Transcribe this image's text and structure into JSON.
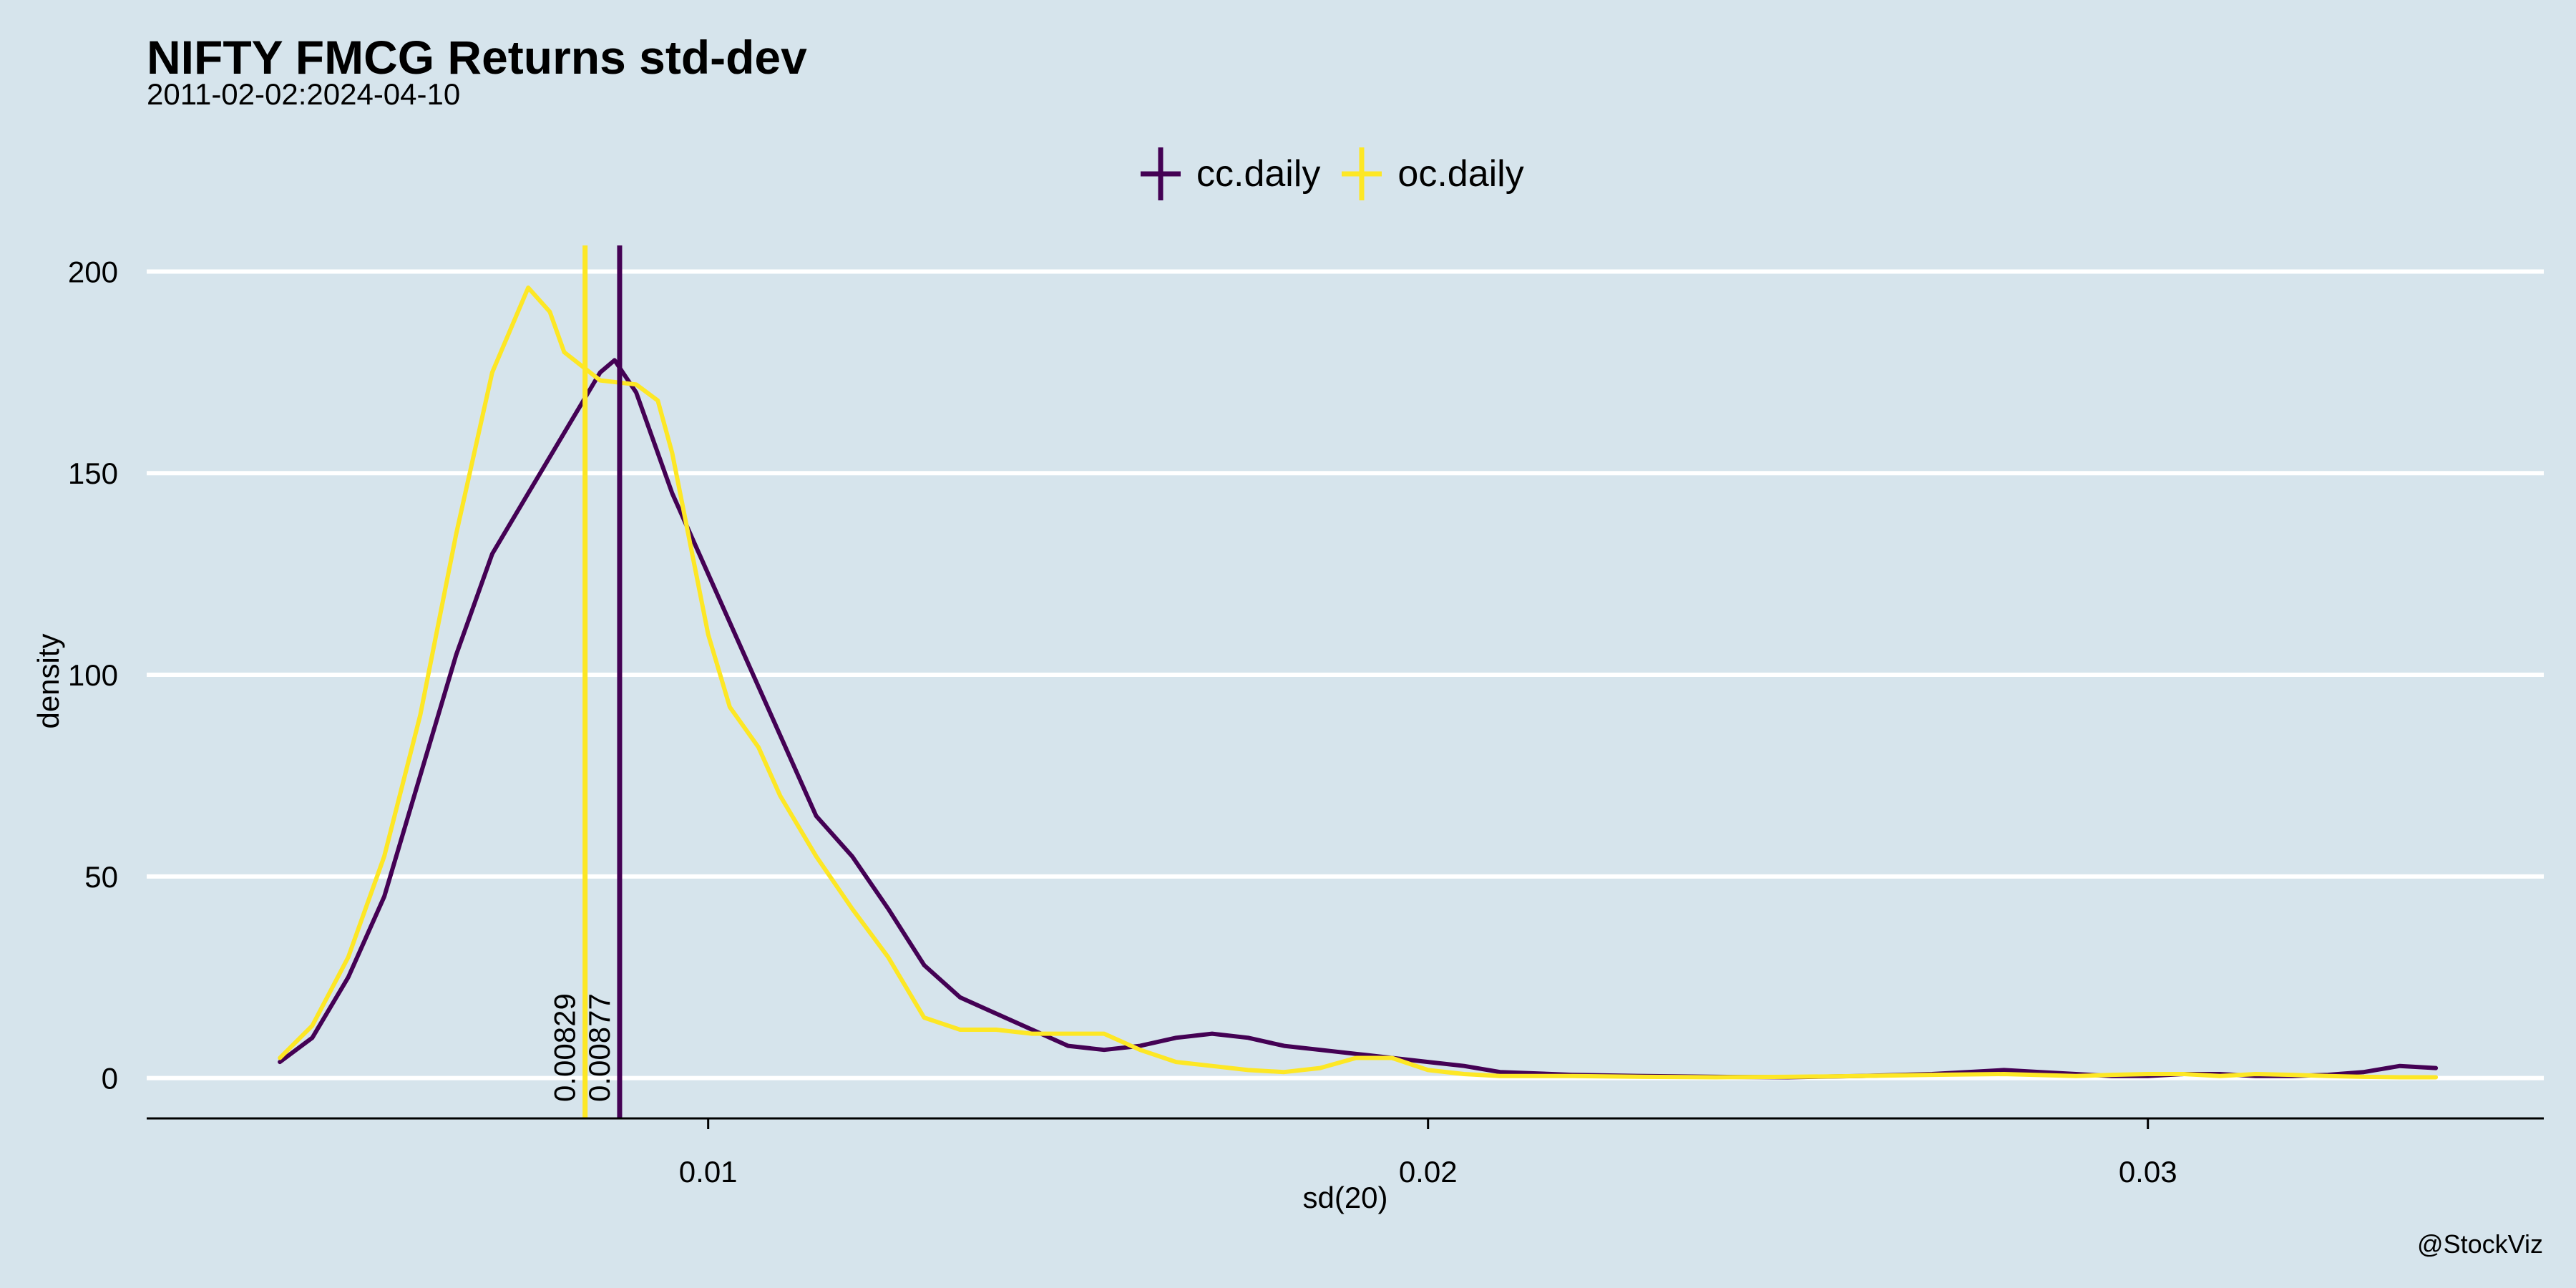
{
  "chart_data": {
    "type": "line",
    "title": "NIFTY FMCG Returns std-dev",
    "subtitle": "2011-02-02:2024-04-10",
    "xlabel": "sd(20)",
    "ylabel": "density",
    "caption": "@StockViz",
    "xlim": [
      0.0022,
      0.0355
    ],
    "ylim": [
      -10,
      207
    ],
    "x_ticks": [
      {
        "value": 0.01,
        "label": "0.01"
      },
      {
        "value": 0.02,
        "label": "0.02"
      },
      {
        "value": 0.03,
        "label": "0.03"
      }
    ],
    "y_ticks": [
      {
        "value": 0,
        "label": "0"
      },
      {
        "value": 50,
        "label": "50"
      },
      {
        "value": 100,
        "label": "100"
      },
      {
        "value": 150,
        "label": "150"
      },
      {
        "value": 200,
        "label": "200"
      }
    ],
    "legend_position": "top-center",
    "series": [
      {
        "name": "cc.daily",
        "color": "#440154",
        "median": 0.00877,
        "median_label": "0.00877",
        "points": [
          [
            0.00405,
            4
          ],
          [
            0.0045,
            10
          ],
          [
            0.005,
            25
          ],
          [
            0.0055,
            45
          ],
          [
            0.006,
            75
          ],
          [
            0.0065,
            105
          ],
          [
            0.007,
            130
          ],
          [
            0.0075,
            145
          ],
          [
            0.008,
            160
          ],
          [
            0.0085,
            175
          ],
          [
            0.0087,
            178
          ],
          [
            0.009,
            170
          ],
          [
            0.0095,
            145
          ],
          [
            0.01,
            125
          ],
          [
            0.0105,
            105
          ],
          [
            0.011,
            85
          ],
          [
            0.0115,
            65
          ],
          [
            0.012,
            55
          ],
          [
            0.0125,
            42
          ],
          [
            0.013,
            28
          ],
          [
            0.0135,
            20
          ],
          [
            0.014,
            16
          ],
          [
            0.0145,
            12
          ],
          [
            0.015,
            8
          ],
          [
            0.0155,
            7
          ],
          [
            0.016,
            8
          ],
          [
            0.0165,
            10
          ],
          [
            0.017,
            11
          ],
          [
            0.0175,
            10
          ],
          [
            0.018,
            8
          ],
          [
            0.0185,
            7
          ],
          [
            0.019,
            6
          ],
          [
            0.0195,
            5
          ],
          [
            0.02,
            4
          ],
          [
            0.0205,
            3
          ],
          [
            0.021,
            1.5
          ],
          [
            0.022,
            0.8
          ],
          [
            0.023,
            0.5
          ],
          [
            0.024,
            0.3
          ],
          [
            0.025,
            0.2
          ],
          [
            0.026,
            0.5
          ],
          [
            0.027,
            1
          ],
          [
            0.0275,
            1.5
          ],
          [
            0.028,
            2
          ],
          [
            0.0285,
            1.5
          ],
          [
            0.029,
            1
          ],
          [
            0.0295,
            0.5
          ],
          [
            0.03,
            0.5
          ],
          [
            0.0305,
            1
          ],
          [
            0.031,
            1
          ],
          [
            0.0315,
            0.5
          ],
          [
            0.032,
            0.5
          ],
          [
            0.0325,
            0.8
          ],
          [
            0.033,
            1.5
          ],
          [
            0.0335,
            3
          ],
          [
            0.034,
            2.5
          ]
        ]
      },
      {
        "name": "oc.daily",
        "color": "#fde725",
        "median": 0.00829,
        "median_label": "0.00829",
        "points": [
          [
            0.00405,
            5
          ],
          [
            0.0045,
            13
          ],
          [
            0.005,
            30
          ],
          [
            0.0055,
            55
          ],
          [
            0.006,
            90
          ],
          [
            0.0065,
            135
          ],
          [
            0.007,
            175
          ],
          [
            0.0075,
            196
          ],
          [
            0.0078,
            190
          ],
          [
            0.008,
            180
          ],
          [
            0.0085,
            173
          ],
          [
            0.009,
            172
          ],
          [
            0.0093,
            168
          ],
          [
            0.0095,
            155
          ],
          [
            0.01,
            110
          ],
          [
            0.0103,
            92
          ],
          [
            0.0107,
            82
          ],
          [
            0.011,
            70
          ],
          [
            0.0115,
            55
          ],
          [
            0.012,
            42
          ],
          [
            0.0125,
            30
          ],
          [
            0.013,
            15
          ],
          [
            0.0135,
            12
          ],
          [
            0.014,
            12
          ],
          [
            0.0145,
            11
          ],
          [
            0.015,
            11
          ],
          [
            0.0155,
            11
          ],
          [
            0.016,
            7
          ],
          [
            0.0165,
            4
          ],
          [
            0.017,
            3
          ],
          [
            0.0175,
            2
          ],
          [
            0.018,
            1.5
          ],
          [
            0.0185,
            2.5
          ],
          [
            0.019,
            5
          ],
          [
            0.0195,
            5
          ],
          [
            0.02,
            2
          ],
          [
            0.0205,
            1
          ],
          [
            0.021,
            0.5
          ],
          [
            0.022,
            0.5
          ],
          [
            0.023,
            0.3
          ],
          [
            0.024,
            0.2
          ],
          [
            0.025,
            0.3
          ],
          [
            0.026,
            0.5
          ],
          [
            0.027,
            0.8
          ],
          [
            0.028,
            1
          ],
          [
            0.029,
            0.5
          ],
          [
            0.0295,
            0.8
          ],
          [
            0.03,
            1
          ],
          [
            0.0305,
            1
          ],
          [
            0.031,
            0.5
          ],
          [
            0.0315,
            1
          ],
          [
            0.032,
            0.8
          ],
          [
            0.0325,
            0.5
          ],
          [
            0.033,
            0.3
          ],
          [
            0.0335,
            0.2
          ],
          [
            0.034,
            0.2
          ]
        ]
      }
    ]
  }
}
